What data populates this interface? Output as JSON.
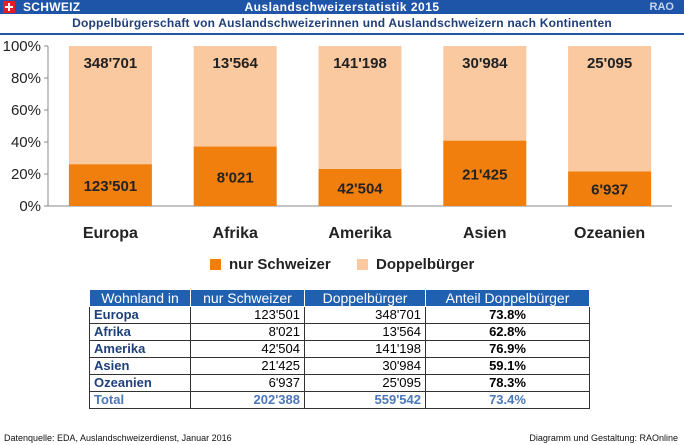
{
  "header": {
    "country": "SCHWEIZ",
    "title": "Auslandschweizerstatistik 2015",
    "code": "RAO",
    "subtitle": "Doppelbürgerschaft von  Auslandschweizerinnen und Auslandschweizern nach Kontinenten"
  },
  "chart_data": {
    "type": "bar",
    "stacked": "percent",
    "categories": [
      "Europa",
      "Afrika",
      "Amerika",
      "Asien",
      "Ozeanien"
    ],
    "series": [
      {
        "name": "nur Schweizer",
        "color": "#f07f0e",
        "values": [
          123501,
          8021,
          42504,
          21425,
          6937
        ],
        "labels": [
          "123'501",
          "8'021",
          "42'504",
          "21'425",
          "6'937"
        ]
      },
      {
        "name": "Doppelbürger",
        "color": "#fbc9a0",
        "values": [
          348701,
          13564,
          141198,
          30984,
          25095
        ],
        "labels": [
          "348'701",
          "13'564",
          "141'198",
          "30'984",
          "25'095"
        ]
      }
    ],
    "yticks": [
      "0%",
      "20%",
      "40%",
      "60%",
      "80%",
      "100%"
    ],
    "ylim": [
      0,
      100
    ],
    "legend": "bottom"
  },
  "table": {
    "headers": [
      "Wohnland in",
      "nur Schweizer",
      "Doppelbürger",
      "Anteil Doppelbürger"
    ],
    "rows": [
      [
        "Europa",
        "123'501",
        "348'701",
        "73.8%"
      ],
      [
        "Afrika",
        "8'021",
        "13'564",
        "62.8%"
      ],
      [
        "Amerika",
        "42'504",
        "141'198",
        "76.9%"
      ],
      [
        "Asien",
        "21'425",
        "30'984",
        "59.1%"
      ],
      [
        "Ozeanien",
        "6'937",
        "25'095",
        "78.3%"
      ]
    ],
    "total": [
      "Total",
      "202'388",
      "559'542",
      "73.4%"
    ]
  },
  "footer": {
    "source": "Datenquelle: EDA, Auslandschweizerdienst,  Januar 2016",
    "credit": "Diagramm und Gestaltung: RAOnline"
  }
}
